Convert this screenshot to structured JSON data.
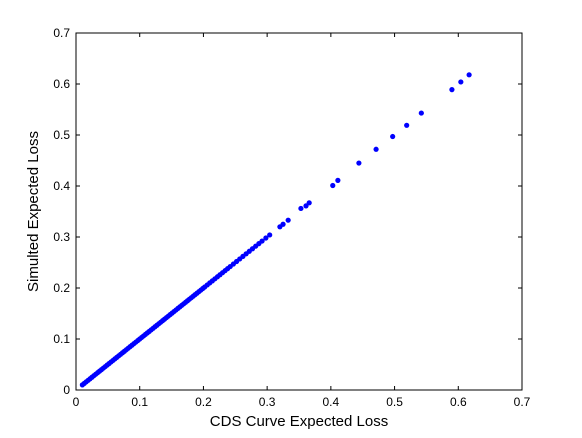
{
  "chart_data": {
    "type": "scatter",
    "title": "",
    "xlabel": "CDS Curve Expected Loss",
    "ylabel": "Simulted Expected Loss",
    "xlim": [
      0,
      0.7
    ],
    "ylim": [
      0,
      0.7
    ],
    "xticks": [
      "0",
      "0.1",
      "0.2",
      "0.3",
      "0.4",
      "0.5",
      "0.6",
      "0.7"
    ],
    "yticks": [
      "0",
      "0.1",
      "0.2",
      "0.3",
      "0.4",
      "0.5",
      "0.6",
      "0.7"
    ],
    "grid": false,
    "legend": "none",
    "marker_color": "#0000ff",
    "series": [
      {
        "x": [
          0.01,
          0.013,
          0.016,
          0.019,
          0.022,
          0.025,
          0.028,
          0.031,
          0.034,
          0.037,
          0.04,
          0.043,
          0.046,
          0.049,
          0.052,
          0.055,
          0.058,
          0.061,
          0.064,
          0.067,
          0.07,
          0.073,
          0.076,
          0.079,
          0.082,
          0.085,
          0.088,
          0.091,
          0.094,
          0.097,
          0.1,
          0.103,
          0.106,
          0.109,
          0.112,
          0.115,
          0.118,
          0.121,
          0.124,
          0.127,
          0.13,
          0.133,
          0.136,
          0.139,
          0.142,
          0.145,
          0.148,
          0.151,
          0.154,
          0.157,
          0.16,
          0.163,
          0.166,
          0.169,
          0.172,
          0.175,
          0.178,
          0.181,
          0.184,
          0.187,
          0.19,
          0.193,
          0.196,
          0.199,
          0.202,
          0.206,
          0.21,
          0.214,
          0.218,
          0.222,
          0.226,
          0.23,
          0.234,
          0.238,
          0.242,
          0.247,
          0.252,
          0.257,
          0.262,
          0.267,
          0.272,
          0.277,
          0.282,
          0.287,
          0.292,
          0.298,
          0.304,
          0.32,
          0.325,
          0.333,
          0.353,
          0.361,
          0.366,
          0.403,
          0.411,
          0.444,
          0.471,
          0.497,
          0.519,
          0.542,
          0.59,
          0.604,
          0.617
        ],
        "y": [
          0.01,
          0.013,
          0.016,
          0.019,
          0.022,
          0.025,
          0.028,
          0.031,
          0.034,
          0.037,
          0.04,
          0.043,
          0.046,
          0.049,
          0.052,
          0.055,
          0.058,
          0.061,
          0.064,
          0.067,
          0.07,
          0.073,
          0.076,
          0.079,
          0.082,
          0.085,
          0.088,
          0.091,
          0.094,
          0.097,
          0.1,
          0.103,
          0.106,
          0.109,
          0.112,
          0.115,
          0.118,
          0.121,
          0.124,
          0.127,
          0.13,
          0.133,
          0.136,
          0.139,
          0.142,
          0.145,
          0.148,
          0.151,
          0.154,
          0.157,
          0.16,
          0.163,
          0.166,
          0.169,
          0.172,
          0.175,
          0.178,
          0.181,
          0.184,
          0.187,
          0.19,
          0.193,
          0.196,
          0.199,
          0.202,
          0.206,
          0.21,
          0.214,
          0.218,
          0.222,
          0.226,
          0.23,
          0.234,
          0.238,
          0.242,
          0.247,
          0.252,
          0.257,
          0.262,
          0.267,
          0.272,
          0.277,
          0.282,
          0.287,
          0.292,
          0.298,
          0.304,
          0.32,
          0.325,
          0.333,
          0.356,
          0.361,
          0.367,
          0.401,
          0.411,
          0.445,
          0.472,
          0.497,
          0.519,
          0.543,
          0.589,
          0.604,
          0.618
        ]
      }
    ]
  }
}
